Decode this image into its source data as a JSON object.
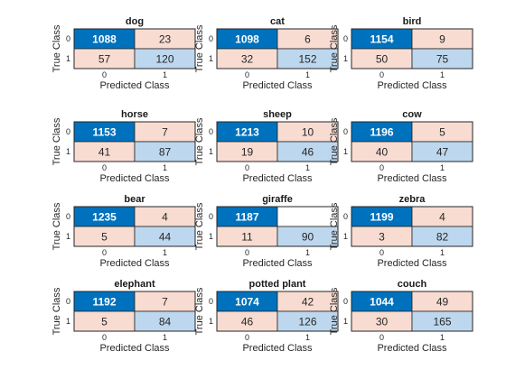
{
  "chart_data": [
    {
      "type": "heatmap",
      "title": "dog",
      "xlabel": "Predicted Class",
      "ylabel": "True Class",
      "row_labels": [
        "0",
        "1"
      ],
      "col_labels": [
        "0",
        "1"
      ],
      "values": [
        [
          1088,
          23
        ],
        [
          57,
          120
        ]
      ]
    },
    {
      "type": "heatmap",
      "title": "cat",
      "xlabel": "Predicted Class",
      "ylabel": "True Class",
      "row_labels": [
        "0",
        "1"
      ],
      "col_labels": [
        "0",
        "1"
      ],
      "values": [
        [
          1098,
          6
        ],
        [
          32,
          152
        ]
      ]
    },
    {
      "type": "heatmap",
      "title": "bird",
      "xlabel": "Predicted Class",
      "ylabel": "True Class",
      "row_labels": [
        "0",
        "1"
      ],
      "col_labels": [
        "0",
        "1"
      ],
      "values": [
        [
          1154,
          9
        ],
        [
          50,
          75
        ]
      ]
    },
    {
      "type": "heatmap",
      "title": "horse",
      "xlabel": "Predicted Class",
      "ylabel": "True Class",
      "row_labels": [
        "0",
        "1"
      ],
      "col_labels": [
        "0",
        "1"
      ],
      "values": [
        [
          1153,
          7
        ],
        [
          41,
          87
        ]
      ]
    },
    {
      "type": "heatmap",
      "title": "sheep",
      "xlabel": "Predicted Class",
      "ylabel": "True Class",
      "row_labels": [
        "0",
        "1"
      ],
      "col_labels": [
        "0",
        "1"
      ],
      "values": [
        [
          1213,
          10
        ],
        [
          19,
          46
        ]
      ]
    },
    {
      "type": "heatmap",
      "title": "cow",
      "xlabel": "Predicted Class",
      "ylabel": "True Class",
      "row_labels": [
        "0",
        "1"
      ],
      "col_labels": [
        "0",
        "1"
      ],
      "values": [
        [
          1196,
          5
        ],
        [
          40,
          47
        ]
      ]
    },
    {
      "type": "heatmap",
      "title": "bear",
      "xlabel": "Predicted Class",
      "ylabel": "True Class",
      "row_labels": [
        "0",
        "1"
      ],
      "col_labels": [
        "0",
        "1"
      ],
      "values": [
        [
          1235,
          4
        ],
        [
          5,
          44
        ]
      ]
    },
    {
      "type": "heatmap",
      "title": "giraffe",
      "xlabel": "Predicted Class",
      "ylabel": "True Class",
      "row_labels": [
        "0",
        "1"
      ],
      "col_labels": [
        "0",
        "1"
      ],
      "values": [
        [
          1187,
          null
        ],
        [
          11,
          90
        ]
      ]
    },
    {
      "type": "heatmap",
      "title": "zebra",
      "xlabel": "Predicted Class",
      "ylabel": "True Class",
      "row_labels": [
        "0",
        "1"
      ],
      "col_labels": [
        "0",
        "1"
      ],
      "values": [
        [
          1199,
          4
        ],
        [
          3,
          82
        ]
      ]
    },
    {
      "type": "heatmap",
      "title": "elephant",
      "xlabel": "Predicted Class",
      "ylabel": "True Class",
      "row_labels": [
        "0",
        "1"
      ],
      "col_labels": [
        "0",
        "1"
      ],
      "values": [
        [
          1192,
          7
        ],
        [
          5,
          84
        ]
      ]
    },
    {
      "type": "heatmap",
      "title": "potted plant",
      "xlabel": "Predicted Class",
      "ylabel": "True Class",
      "row_labels": [
        "0",
        "1"
      ],
      "col_labels": [
        "0",
        "1"
      ],
      "values": [
        [
          1074,
          42
        ],
        [
          46,
          126
        ]
      ]
    },
    {
      "type": "heatmap",
      "title": "couch",
      "xlabel": "Predicted Class",
      "ylabel": "True Class",
      "row_labels": [
        "0",
        "1"
      ],
      "col_labels": [
        "0",
        "1"
      ],
      "values": [
        [
          1044,
          49
        ],
        [
          30,
          165
        ]
      ]
    }
  ],
  "colors": {
    "diagonal_strong": "#0072bd",
    "diagonal_light": "#bdd7ee",
    "off_diagonal": "#f8dcd2",
    "empty": "#ffffff",
    "border": "#262626",
    "text_dark": "#262626",
    "text_light": "#ffffff"
  }
}
